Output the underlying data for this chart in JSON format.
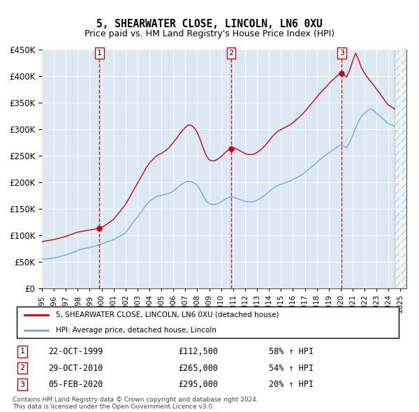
{
  "title": "5, SHEARWATER CLOSE, LINCOLN, LN6 0XU",
  "subtitle": "Price paid vs. HM Land Registry's House Price Index (HPI)",
  "ylabel": "",
  "ylim": [
    0,
    450000
  ],
  "yticks": [
    0,
    50000,
    100000,
    150000,
    200000,
    250000,
    300000,
    350000,
    400000,
    450000
  ],
  "ytick_labels": [
    "£0",
    "£50K",
    "£100K",
    "£150K",
    "£200K",
    "£250K",
    "£300K",
    "£350K",
    "£400K",
    "£450K"
  ],
  "xlim_start": 1995.0,
  "xlim_end": 2025.5,
  "chart_bg": "#dce9f5",
  "hpi_line_color": "#6aaed6",
  "price_line_color": "#cc0000",
  "vline_color": "#cc0000",
  "transactions": [
    {
      "label": "1",
      "date": "22-OCT-1999",
      "price": 112500,
      "pct": "58%",
      "x": 1999.81
    },
    {
      "label": "2",
      "date": "29-OCT-2010",
      "price": 265000,
      "pct": "54%",
      "x": 2010.83
    },
    {
      "label": "3",
      "date": "05-FEB-2020",
      "price": 295000,
      "pct": "20%",
      "x": 2020.09
    }
  ],
  "legend_line1": "5, SHEARWATER CLOSE, LINCOLN, LN6 0XU (detached house)",
  "legend_line2": "HPI: Average price, detached house, Lincoln",
  "footnote1": "Contains HM Land Registry data © Crown copyright and database right 2024.",
  "footnote2": "This data is licensed under the Open Government Licence v3.0.",
  "hpi_data_x": [
    1995.0,
    1995.25,
    1995.5,
    1995.75,
    1996.0,
    1996.25,
    1996.5,
    1996.75,
    1997.0,
    1997.25,
    1997.5,
    1997.75,
    1998.0,
    1998.25,
    1998.5,
    1998.75,
    1999.0,
    1999.25,
    1999.5,
    1999.75,
    2000.0,
    2000.25,
    2000.5,
    2000.75,
    2001.0,
    2001.25,
    2001.5,
    2001.75,
    2002.0,
    2002.25,
    2002.5,
    2002.75,
    2003.0,
    2003.25,
    2003.5,
    2003.75,
    2004.0,
    2004.25,
    2004.5,
    2004.75,
    2005.0,
    2005.25,
    2005.5,
    2005.75,
    2006.0,
    2006.25,
    2006.5,
    2006.75,
    2007.0,
    2007.25,
    2007.5,
    2007.75,
    2008.0,
    2008.25,
    2008.5,
    2008.75,
    2009.0,
    2009.25,
    2009.5,
    2009.75,
    2010.0,
    2010.25,
    2010.5,
    2010.75,
    2011.0,
    2011.25,
    2011.5,
    2011.75,
    2012.0,
    2012.25,
    2012.5,
    2012.75,
    2013.0,
    2013.25,
    2013.5,
    2013.75,
    2014.0,
    2014.25,
    2014.5,
    2014.75,
    2015.0,
    2015.25,
    2015.5,
    2015.75,
    2016.0,
    2016.25,
    2016.5,
    2016.75,
    2017.0,
    2017.25,
    2017.5,
    2017.75,
    2018.0,
    2018.25,
    2018.5,
    2018.75,
    2019.0,
    2019.25,
    2019.5,
    2019.75,
    2020.0,
    2020.25,
    2020.5,
    2020.75,
    2021.0,
    2021.25,
    2021.5,
    2021.75,
    2022.0,
    2022.25,
    2022.5,
    2022.75,
    2023.0,
    2023.25,
    2023.5,
    2023.75,
    2024.0,
    2024.25,
    2024.5
  ],
  "hpi_data_y": [
    55000,
    55500,
    56000,
    56500,
    57500,
    58500,
    60000,
    61500,
    63000,
    65000,
    67000,
    69000,
    71500,
    73500,
    75000,
    76000,
    77000,
    78500,
    80000,
    82000,
    84000,
    86000,
    88000,
    90000,
    92000,
    95000,
    98000,
    101000,
    105000,
    112000,
    120000,
    128000,
    135000,
    142000,
    150000,
    158000,
    164000,
    168000,
    172000,
    174000,
    175000,
    177000,
    178000,
    180000,
    183000,
    188000,
    193000,
    197000,
    200000,
    202000,
    201000,
    198000,
    194000,
    185000,
    174000,
    165000,
    160000,
    158000,
    158000,
    160000,
    163000,
    167000,
    170000,
    172000,
    172000,
    170000,
    168000,
    166000,
    164000,
    163000,
    163000,
    164000,
    166000,
    169000,
    173000,
    177000,
    182000,
    187000,
    191000,
    194000,
    196000,
    198000,
    200000,
    202000,
    205000,
    208000,
    211000,
    214000,
    218000,
    223000,
    228000,
    232000,
    237000,
    242000,
    247000,
    251000,
    255000,
    259000,
    263000,
    267000,
    270000,
    268000,
    265000,
    275000,
    288000,
    302000,
    315000,
    325000,
    330000,
    335000,
    338000,
    335000,
    330000,
    325000,
    320000,
    315000,
    310000,
    308000,
    305000
  ],
  "price_data_x": [
    1995.0,
    1995.25,
    1995.5,
    1995.75,
    1996.0,
    1996.25,
    1996.5,
    1996.75,
    1997.0,
    1997.25,
    1997.5,
    1997.75,
    1998.0,
    1998.25,
    1998.5,
    1998.75,
    1999.0,
    1999.25,
    1999.5,
    1999.75,
    2000.0,
    2000.25,
    2000.5,
    2000.75,
    2001.0,
    2001.25,
    2001.5,
    2001.75,
    2002.0,
    2002.25,
    2002.5,
    2002.75,
    2003.0,
    2003.25,
    2003.5,
    2003.75,
    2004.0,
    2004.25,
    2004.5,
    2004.75,
    2005.0,
    2005.25,
    2005.5,
    2005.75,
    2006.0,
    2006.25,
    2006.5,
    2006.75,
    2007.0,
    2007.25,
    2007.5,
    2007.75,
    2008.0,
    2008.25,
    2008.5,
    2008.75,
    2009.0,
    2009.25,
    2009.5,
    2009.75,
    2010.0,
    2010.25,
    2010.5,
    2010.75,
    2011.0,
    2011.25,
    2011.5,
    2011.75,
    2012.0,
    2012.25,
    2012.5,
    2012.75,
    2013.0,
    2013.25,
    2013.5,
    2013.75,
    2014.0,
    2014.25,
    2014.5,
    2014.75,
    2015.0,
    2015.25,
    2015.5,
    2015.75,
    2016.0,
    2016.25,
    2016.5,
    2016.75,
    2017.0,
    2017.25,
    2017.5,
    2017.75,
    2018.0,
    2018.25,
    2018.5,
    2018.75,
    2019.0,
    2019.25,
    2019.5,
    2019.75,
    2020.0,
    2020.25,
    2020.5,
    2020.75,
    2021.0,
    2021.25,
    2021.5,
    2021.75,
    2022.0,
    2022.25,
    2022.5,
    2022.75,
    2023.0,
    2023.25,
    2023.5,
    2023.75,
    2024.0,
    2024.25,
    2024.5
  ],
  "price_data_y": [
    88000,
    89000,
    90000,
    91000,
    92000,
    93500,
    95000,
    96500,
    98000,
    100000,
    102000,
    104000,
    106000,
    107000,
    108000,
    109000,
    110000,
    111000,
    112000,
    112500,
    115000,
    118000,
    122000,
    126000,
    130000,
    137000,
    144000,
    151000,
    158000,
    168000,
    178000,
    188000,
    198000,
    208000,
    218000,
    228000,
    236000,
    242000,
    248000,
    252000,
    254000,
    258000,
    262000,
    268000,
    275000,
    282000,
    290000,
    297000,
    303000,
    308000,
    307000,
    302000,
    294000,
    280000,
    264000,
    250000,
    242000,
    240000,
    241000,
    244000,
    248000,
    254000,
    259000,
    263000,
    265000,
    263000,
    260000,
    257000,
    254000,
    252000,
    252000,
    253000,
    256000,
    260000,
    265000,
    271000,
    278000,
    285000,
    291000,
    296000,
    299000,
    302000,
    305000,
    308000,
    312000,
    317000,
    322000,
    327000,
    333000,
    340000,
    347000,
    353000,
    360000,
    367000,
    373000,
    379000,
    385000,
    391000,
    396000,
    401000,
    405000,
    403000,
    398000,
    411000,
    428000,
    443000,
    430000,
    415000,
    405000,
    397000,
    390000,
    383000,
    375000,
    368000,
    360000,
    352000,
    345000,
    342000,
    338000
  ],
  "hatched_region_start": 2024.5,
  "hatched_region_end": 2025.5
}
